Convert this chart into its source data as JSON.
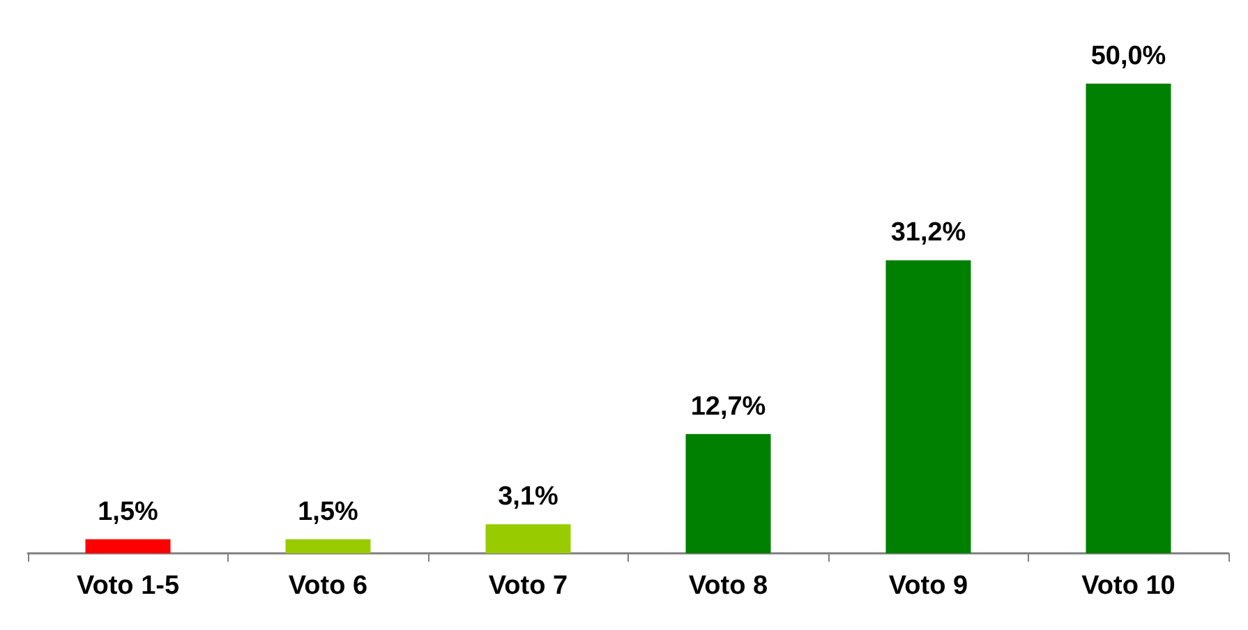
{
  "chart_data": {
    "type": "bar",
    "categories": [
      "Voto 1-5",
      "Voto 6",
      "Voto 7",
      "Voto 8",
      "Voto 9",
      "Voto 10"
    ],
    "values": [
      1.5,
      1.5,
      3.1,
      12.7,
      31.2,
      50.0
    ],
    "colors": [
      "#ff0000",
      "#99cc00",
      "#99cc00",
      "#008000",
      "#008000",
      "#008000"
    ],
    "value_labels": [
      "1,5%",
      "1,5%",
      "3,1%",
      "12,7%",
      "31,2%",
      "50,0%"
    ]
  }
}
